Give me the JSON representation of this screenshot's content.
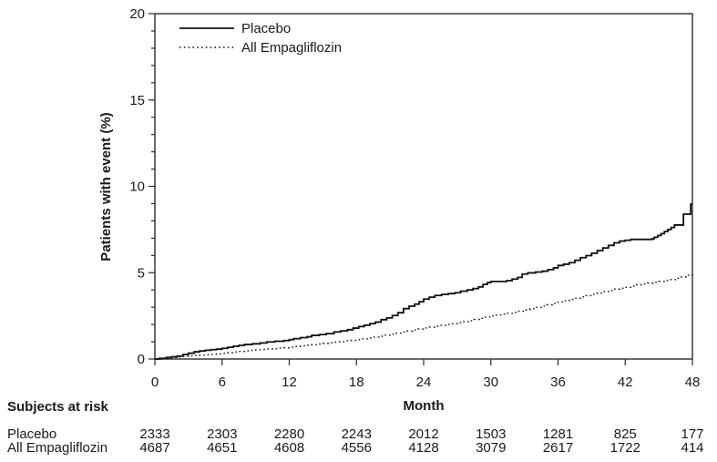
{
  "figure": {
    "background": "#ffffff",
    "text_color": "#1a1a1a",
    "line_color": "#111111"
  },
  "chart_data": {
    "type": "line",
    "subtype": "kaplan-meier-step",
    "title": "",
    "xlabel": "Month",
    "ylabel": "Patients with event (%)",
    "xlim": [
      0,
      48
    ],
    "ylim": [
      0,
      20
    ],
    "xticks": [
      0,
      6,
      12,
      18,
      24,
      30,
      36,
      42,
      48
    ],
    "yticks": [
      0,
      5,
      10,
      15,
      20
    ],
    "y_minor_step": 1,
    "grid": false,
    "legend": {
      "position": "top-left-inside",
      "entries": [
        {
          "label": "Placebo",
          "line": "solid"
        },
        {
          "label": "All Empagliflozin",
          "line": "dotted"
        }
      ]
    },
    "series": [
      {
        "name": "Placebo",
        "style": "solid",
        "points": [
          [
            0,
            0
          ],
          [
            0.4,
            0.04
          ],
          [
            1,
            0.09
          ],
          [
            1.5,
            0.13
          ],
          [
            2,
            0.17
          ],
          [
            2.5,
            0.26
          ],
          [
            3,
            0.34
          ],
          [
            3.5,
            0.42
          ],
          [
            4,
            0.47
          ],
          [
            4.5,
            0.51
          ],
          [
            5,
            0.54
          ],
          [
            5.5,
            0.57
          ],
          [
            6,
            0.62
          ],
          [
            6.5,
            0.68
          ],
          [
            7,
            0.74
          ],
          [
            7.5,
            0.79
          ],
          [
            8,
            0.84
          ],
          [
            8.7,
            0.88
          ],
          [
            9.4,
            0.93
          ],
          [
            10,
            0.99
          ],
          [
            10.7,
            1.03
          ],
          [
            11.5,
            1.07
          ],
          [
            12,
            1.12
          ],
          [
            12.4,
            1.18
          ],
          [
            13,
            1.24
          ],
          [
            13.6,
            1.29
          ],
          [
            14,
            1.37
          ],
          [
            14.7,
            1.42
          ],
          [
            15.3,
            1.47
          ],
          [
            16,
            1.57
          ],
          [
            16.6,
            1.63
          ],
          [
            17.2,
            1.7
          ],
          [
            17.7,
            1.79
          ],
          [
            18.2,
            1.88
          ],
          [
            18.7,
            1.96
          ],
          [
            19.2,
            2.05
          ],
          [
            19.7,
            2.14
          ],
          [
            20.2,
            2.28
          ],
          [
            20.7,
            2.38
          ],
          [
            21.2,
            2.52
          ],
          [
            21.7,
            2.68
          ],
          [
            22.2,
            2.92
          ],
          [
            22.7,
            3.06
          ],
          [
            23.2,
            3.18
          ],
          [
            23.6,
            3.32
          ],
          [
            24,
            3.47
          ],
          [
            24.5,
            3.58
          ],
          [
            25,
            3.68
          ],
          [
            25.6,
            3.74
          ],
          [
            26.2,
            3.79
          ],
          [
            26.8,
            3.84
          ],
          [
            27.3,
            3.93
          ],
          [
            27.9,
            4.0
          ],
          [
            28.4,
            4.08
          ],
          [
            28.9,
            4.18
          ],
          [
            29.3,
            4.32
          ],
          [
            29.7,
            4.43
          ],
          [
            30,
            4.49
          ],
          [
            31.4,
            4.54
          ],
          [
            31.9,
            4.63
          ],
          [
            32.4,
            4.73
          ],
          [
            32.8,
            4.92
          ],
          [
            33.3,
            4.99
          ],
          [
            34,
            5.04
          ],
          [
            34.6,
            5.09
          ],
          [
            35.1,
            5.18
          ],
          [
            35.6,
            5.28
          ],
          [
            36,
            5.42
          ],
          [
            36.5,
            5.49
          ],
          [
            37,
            5.58
          ],
          [
            37.5,
            5.72
          ],
          [
            38,
            5.87
          ],
          [
            38.5,
            5.99
          ],
          [
            39,
            6.13
          ],
          [
            39.5,
            6.28
          ],
          [
            40,
            6.43
          ],
          [
            40.5,
            6.58
          ],
          [
            41,
            6.73
          ],
          [
            41.5,
            6.83
          ],
          [
            42,
            6.88
          ],
          [
            42.5,
            6.93
          ],
          [
            44.4,
            6.97
          ],
          [
            44.6,
            7.05
          ],
          [
            44.9,
            7.15
          ],
          [
            45.2,
            7.26
          ],
          [
            45.5,
            7.38
          ],
          [
            45.8,
            7.5
          ],
          [
            46.1,
            7.62
          ],
          [
            46.4,
            7.76
          ],
          [
            47.2,
            8.39
          ],
          [
            47.85,
            8.97
          ],
          [
            48,
            8.97
          ]
        ]
      },
      {
        "name": "All Empagliflozin",
        "style": "dotted",
        "points": [
          [
            0,
            0
          ],
          [
            0.5,
            0.03
          ],
          [
            1,
            0.06
          ],
          [
            1.5,
            0.09
          ],
          [
            2,
            0.12
          ],
          [
            2.5,
            0.15
          ],
          [
            3,
            0.18
          ],
          [
            3.5,
            0.21
          ],
          [
            4,
            0.23
          ],
          [
            4.5,
            0.25
          ],
          [
            5,
            0.28
          ],
          [
            5.5,
            0.3
          ],
          [
            6,
            0.33
          ],
          [
            6.5,
            0.37
          ],
          [
            7,
            0.41
          ],
          [
            7.5,
            0.44
          ],
          [
            8,
            0.47
          ],
          [
            8.5,
            0.5
          ],
          [
            9,
            0.53
          ],
          [
            9.5,
            0.55
          ],
          [
            10,
            0.58
          ],
          [
            10.5,
            0.6
          ],
          [
            11,
            0.63
          ],
          [
            11.5,
            0.65
          ],
          [
            12,
            0.68
          ],
          [
            12.5,
            0.72
          ],
          [
            13,
            0.76
          ],
          [
            13.5,
            0.8
          ],
          [
            14,
            0.83
          ],
          [
            14.5,
            0.87
          ],
          [
            15,
            0.91
          ],
          [
            15.5,
            0.94
          ],
          [
            16,
            0.98
          ],
          [
            16.5,
            1.01
          ],
          [
            17,
            1.05
          ],
          [
            17.5,
            1.08
          ],
          [
            18,
            1.12
          ],
          [
            18.5,
            1.17
          ],
          [
            19,
            1.22
          ],
          [
            19.5,
            1.27
          ],
          [
            20,
            1.32
          ],
          [
            20.5,
            1.38
          ],
          [
            21,
            1.44
          ],
          [
            21.5,
            1.5
          ],
          [
            22,
            1.56
          ],
          [
            22.5,
            1.62
          ],
          [
            23,
            1.68
          ],
          [
            23.5,
            1.74
          ],
          [
            24,
            1.8
          ],
          [
            24.5,
            1.85
          ],
          [
            25,
            1.9
          ],
          [
            25.5,
            1.95
          ],
          [
            26,
            2.0
          ],
          [
            26.5,
            2.05
          ],
          [
            27,
            2.1
          ],
          [
            27.5,
            2.16
          ],
          [
            28,
            2.22
          ],
          [
            28.5,
            2.29
          ],
          [
            29,
            2.36
          ],
          [
            29.5,
            2.43
          ],
          [
            30,
            2.5
          ],
          [
            30.5,
            2.55
          ],
          [
            31,
            2.6
          ],
          [
            31.5,
            2.65
          ],
          [
            32,
            2.7
          ],
          [
            32.5,
            2.77
          ],
          [
            33,
            2.85
          ],
          [
            33.5,
            2.92
          ],
          [
            34,
            3.0
          ],
          [
            34.5,
            3.07
          ],
          [
            35,
            3.14
          ],
          [
            35.5,
            3.22
          ],
          [
            36,
            3.3
          ],
          [
            36.5,
            3.37
          ],
          [
            37,
            3.45
          ],
          [
            37.5,
            3.52
          ],
          [
            38,
            3.6
          ],
          [
            38.5,
            3.67
          ],
          [
            39,
            3.75
          ],
          [
            39.5,
            3.82
          ],
          [
            40,
            3.9
          ],
          [
            40.5,
            3.97
          ],
          [
            41,
            4.05
          ],
          [
            41.5,
            4.1
          ],
          [
            42,
            4.15
          ],
          [
            42.5,
            4.22
          ],
          [
            43,
            4.3
          ],
          [
            43.5,
            4.35
          ],
          [
            44,
            4.4
          ],
          [
            44.5,
            4.45
          ],
          [
            45,
            4.5
          ],
          [
            45.5,
            4.55
          ],
          [
            46,
            4.6
          ],
          [
            46.5,
            4.68
          ],
          [
            47,
            4.75
          ],
          [
            47.5,
            4.85
          ],
          [
            48,
            4.97
          ]
        ]
      }
    ]
  },
  "risk_table": {
    "title": "Subjects at risk",
    "months": [
      0,
      6,
      12,
      18,
      24,
      30,
      36,
      42,
      48
    ],
    "rows": [
      {
        "label": "Placebo",
        "values": [
          "2333",
          "2303",
          "2280",
          "2243",
          "2012",
          "1503",
          "1281",
          "825",
          "177"
        ]
      },
      {
        "label": "All Empagliflozin",
        "values": [
          "4687",
          "4651",
          "4608",
          "4556",
          "4128",
          "3079",
          "2617",
          "1722",
          "414"
        ]
      }
    ]
  }
}
